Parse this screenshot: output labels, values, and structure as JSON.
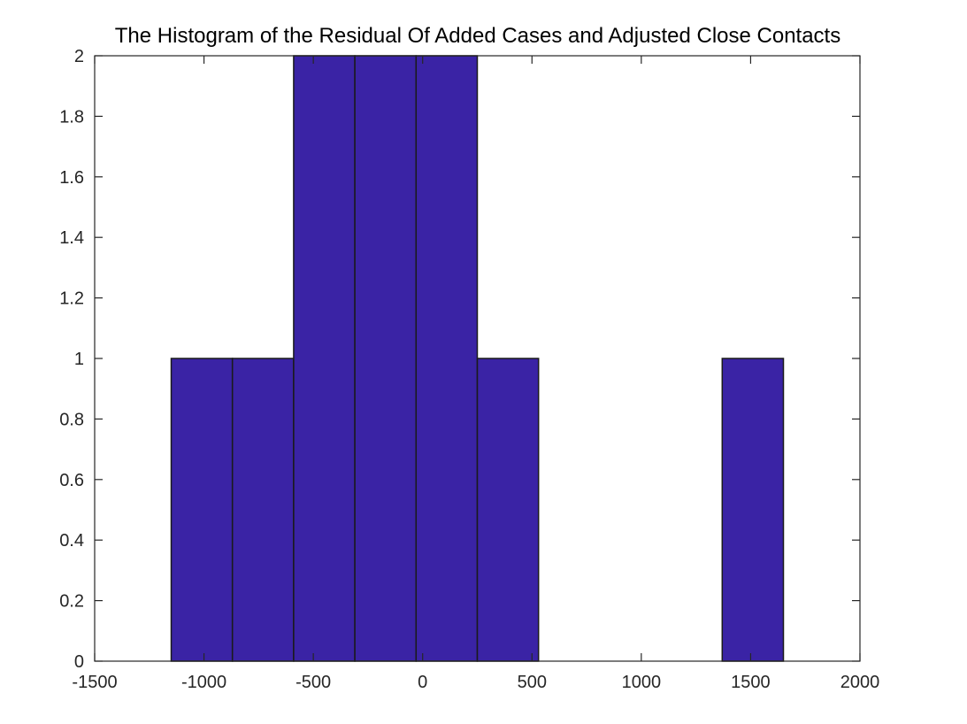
{
  "chart_data": {
    "type": "bar",
    "title": "The Histogram of the Residual Of Added Cases and Adjusted Close Contacts",
    "xlabel": "",
    "ylabel": "",
    "xlim": [
      -1500,
      2000
    ],
    "ylim": [
      0,
      2
    ],
    "x_ticks": [
      "-1500",
      "-1000",
      "-500",
      "0",
      "500",
      "1000",
      "1500",
      "2000"
    ],
    "y_ticks": [
      "0",
      "0.2",
      "0.4",
      "0.6",
      "0.8",
      "1",
      "1.2",
      "1.4",
      "1.6",
      "1.8",
      "2"
    ],
    "bin_edges": [
      -1150,
      -870,
      -590,
      -310,
      -30,
      250,
      530,
      810,
      1090,
      1370,
      1650
    ],
    "counts": [
      1,
      1,
      2,
      2,
      2,
      1,
      0,
      0,
      0,
      1
    ],
    "bar_color": "#3a23a5",
    "edge_color": "#1a1a1a",
    "grid": false
  }
}
